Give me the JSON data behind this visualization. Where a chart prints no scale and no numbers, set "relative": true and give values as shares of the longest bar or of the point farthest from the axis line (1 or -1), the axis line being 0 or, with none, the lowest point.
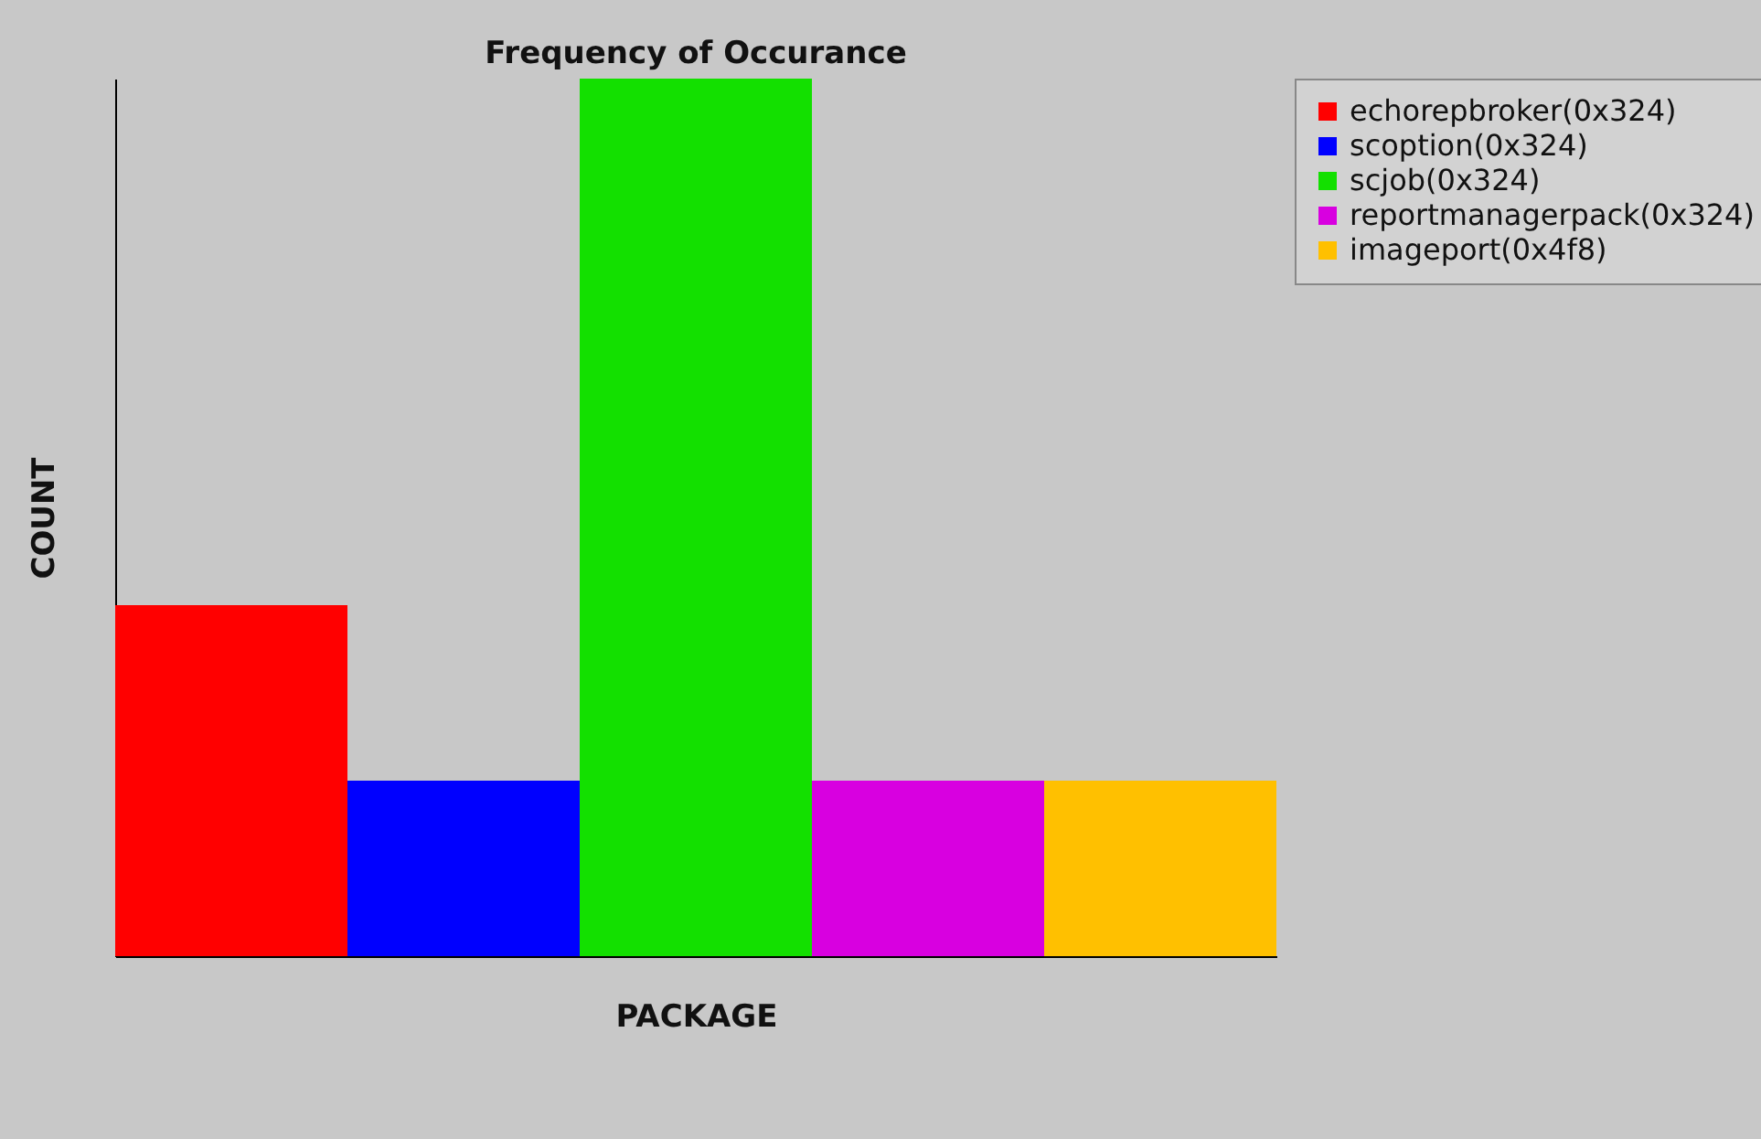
{
  "chart_data": {
    "type": "bar",
    "title": "Frequency of Occurance",
    "xlabel": "PACKAGE",
    "ylabel": "COUNT",
    "categories": [
      null
    ],
    "relative": true,
    "legend": "right",
    "series": [
      {
        "name": "echorepbroker(0x324)",
        "color": "#ff0000",
        "values": [
          0.4
        ]
      },
      {
        "name": "scoption(0x324)",
        "color": "#0000ff",
        "values": [
          0.2
        ]
      },
      {
        "name": "scjob(0x324)",
        "color": "#13e000",
        "values": [
          1
        ]
      },
      {
        "name": "reportmanagerpack(0x324)",
        "color": "#d800e0",
        "values": [
          0.2
        ]
      },
      {
        "name": "imageport(0x4f8)",
        "color": "#ffc000",
        "values": [
          0.2
        ]
      }
    ]
  }
}
